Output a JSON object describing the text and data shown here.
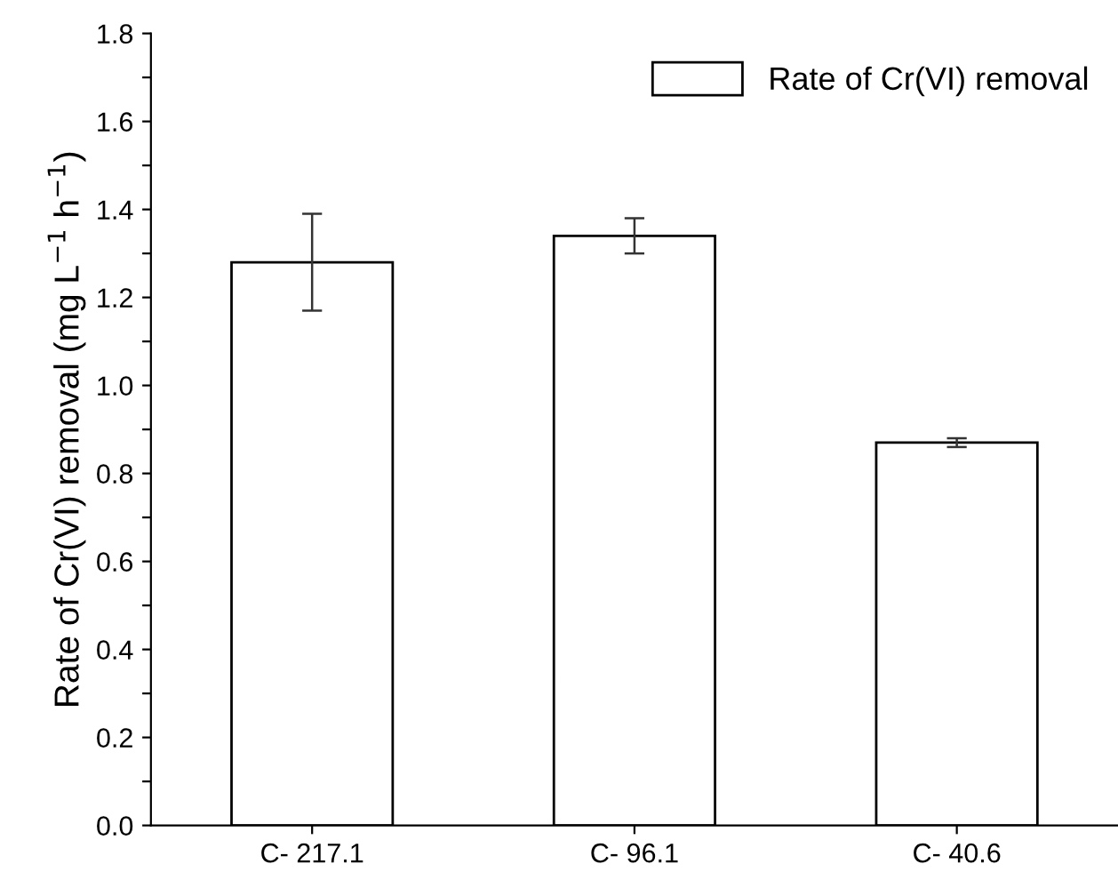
{
  "chart_data": {
    "type": "bar",
    "ylabel": "Rate of Cr(VI) removal (mg L$^{−1}$ h$^{−1}$)",
    "categories": [
      "C- 217.1",
      "C- 96.1",
      "C- 40.6"
    ],
    "series": [
      {
        "name": "Rate of Cr(VI) removal",
        "color": "#ffffff",
        "values": [
          1.28,
          1.34,
          0.87
        ],
        "errors": [
          0.11,
          0.04,
          0.01
        ]
      }
    ],
    "ylim": [
      0,
      1.8
    ],
    "yticks": [
      {
        "value": 0.0,
        "label": "0.0"
      },
      {
        "value": 0.1,
        "label": null
      },
      {
        "value": 0.2,
        "label": "0.2"
      },
      {
        "value": 0.3,
        "label": null
      },
      {
        "value": 0.4,
        "label": "0.4"
      },
      {
        "value": 0.5,
        "label": null
      },
      {
        "value": 0.6,
        "label": "0.6"
      },
      {
        "value": 0.7,
        "label": null
      },
      {
        "value": 0.8,
        "label": "0.8"
      },
      {
        "value": 0.9,
        "label": null
      },
      {
        "value": 1.0,
        "label": "1.0"
      },
      {
        "value": 1.1,
        "label": null
      },
      {
        "value": 1.2,
        "label": "1.2"
      },
      {
        "value": 1.3,
        "label": null
      },
      {
        "value": 1.4,
        "label": "1.4"
      },
      {
        "value": 1.5,
        "label": null
      },
      {
        "value": 1.6,
        "label": "1.6"
      },
      {
        "value": 1.7,
        "label": null
      },
      {
        "value": 1.8,
        "label": "1.8"
      }
    ],
    "grid": false,
    "legend": "top right"
  }
}
